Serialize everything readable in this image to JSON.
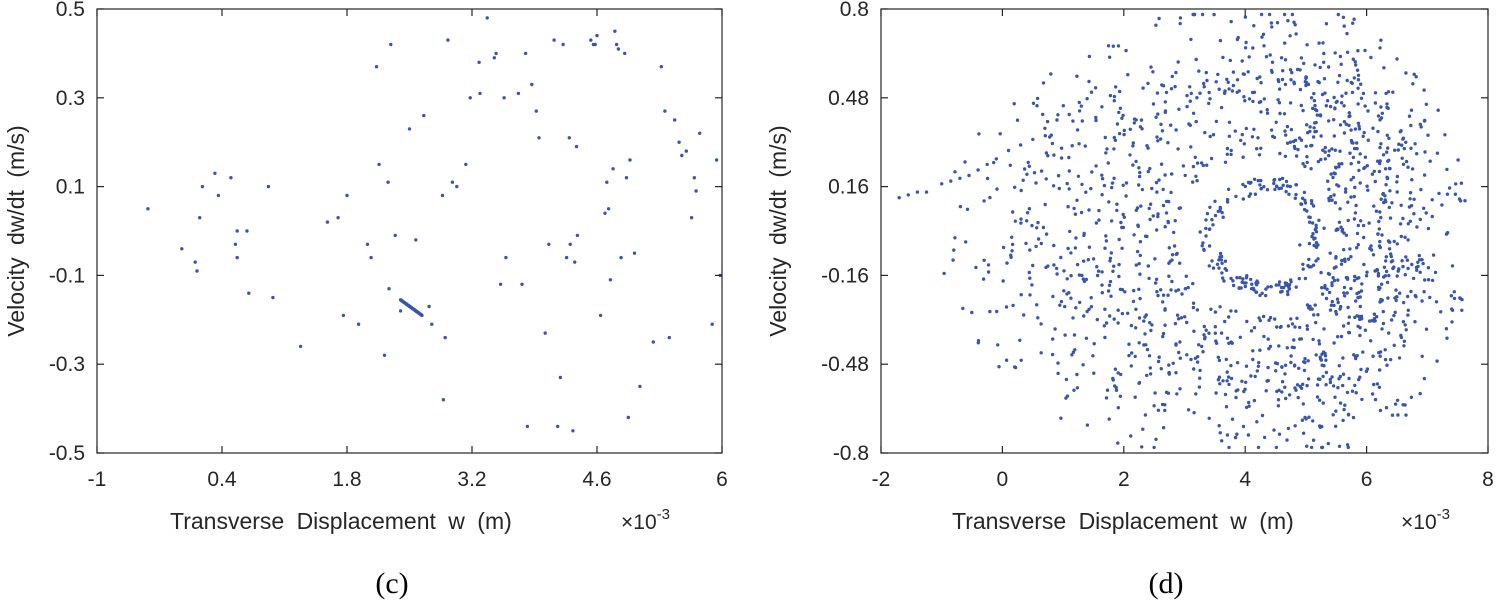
{
  "chart_data": [
    {
      "type": "scatter",
      "panel_caption": "(c)",
      "xlabel": "Transverse  Displacement  w  (m)",
      "x_multiplier": "×10",
      "x_multiplier_exp": "-3",
      "ylabel": "Velocity  dw/dt  (m/s)",
      "xlim": [
        -1,
        6
      ],
      "ylim": [
        -0.5,
        0.5
      ],
      "xticks": [
        -1,
        0.4,
        1.8,
        3.2,
        4.6,
        6
      ],
      "xtick_labels": [
        "-1",
        "0.4",
        "1.8",
        "3.2",
        "4.6",
        "6"
      ],
      "yticks": [
        -0.5,
        -0.3,
        -0.1,
        0.1,
        0.3,
        0.5
      ],
      "ytick_labels": [
        "-0.5",
        "-0.3",
        "-0.1",
        "0.1",
        "0.3",
        "0.5"
      ],
      "grid": false,
      "marker_color": "#3a56a8",
      "series": [
        {
          "points": [
            [
              -0.43,
              0.05
            ],
            [
              -0.05,
              -0.04
            ],
            [
              0.1,
              -0.07
            ],
            [
              0.12,
              -0.09
            ],
            [
              0.15,
              0.03
            ],
            [
              0.18,
              0.1
            ],
            [
              0.32,
              0.13
            ],
            [
              0.36,
              0.08
            ],
            [
              0.5,
              0.12
            ],
            [
              0.57,
              0.0
            ],
            [
              0.55,
              -0.03
            ],
            [
              0.57,
              -0.06
            ],
            [
              0.68,
              0.0
            ],
            [
              0.7,
              -0.14
            ],
            [
              0.92,
              0.1
            ],
            [
              0.97,
              -0.15
            ],
            [
              1.28,
              -0.26
            ],
            [
              1.58,
              0.02
            ],
            [
              1.7,
              0.03
            ],
            [
              1.76,
              -0.19
            ],
            [
              1.8,
              0.08
            ],
            [
              1.93,
              -0.21
            ],
            [
              2.03,
              -0.03
            ],
            [
              2.07,
              -0.06
            ],
            [
              2.13,
              0.37
            ],
            [
              2.16,
              0.15
            ],
            [
              2.22,
              -0.28
            ],
            [
              2.26,
              0.11
            ],
            [
              2.27,
              -0.13
            ],
            [
              2.29,
              0.42
            ],
            [
              2.34,
              -0.01
            ],
            [
              2.4,
              -0.18
            ],
            [
              2.5,
              0.23
            ],
            [
              2.57,
              -0.02
            ],
            [
              2.66,
              0.26
            ],
            [
              2.72,
              -0.17
            ],
            [
              2.75,
              -0.21
            ],
            [
              2.87,
              0.08
            ],
            [
              2.88,
              -0.38
            ],
            [
              2.9,
              -0.24
            ],
            [
              2.93,
              0.43
            ],
            [
              2.98,
              0.11
            ],
            [
              3.03,
              0.1
            ],
            [
              3.13,
              0.15
            ],
            [
              3.18,
              0.3
            ],
            [
              3.28,
              0.38
            ],
            [
              3.29,
              0.31
            ],
            [
              3.37,
              0.48
            ],
            [
              3.45,
              0.39
            ],
            [
              3.47,
              0.4
            ],
            [
              3.52,
              -0.12
            ],
            [
              3.56,
              0.3
            ],
            [
              3.58,
              -0.06
            ],
            [
              3.72,
              0.31
            ],
            [
              3.76,
              -0.12
            ],
            [
              3.8,
              0.4
            ],
            [
              3.82,
              -0.44
            ],
            [
              3.87,
              0.33
            ],
            [
              3.92,
              0.27
            ],
            [
              3.95,
              0.21
            ],
            [
              4.02,
              -0.23
            ],
            [
              4.06,
              -0.03
            ],
            [
              4.12,
              0.43
            ],
            [
              4.16,
              -0.44
            ],
            [
              4.19,
              -0.33
            ],
            [
              4.22,
              0.42
            ],
            [
              4.26,
              -0.06
            ],
            [
              4.29,
              0.21
            ],
            [
              4.3,
              -0.03
            ],
            [
              4.33,
              -0.45
            ],
            [
              4.35,
              -0.07
            ],
            [
              4.37,
              0.19
            ],
            [
              4.38,
              -0.01
            ],
            [
              4.53,
              0.43
            ],
            [
              4.56,
              0.42
            ],
            [
              4.58,
              0.42
            ],
            [
              4.6,
              0.44
            ],
            [
              4.64,
              -0.19
            ],
            [
              4.69,
              0.04
            ],
            [
              4.71,
              0.11
            ],
            [
              4.73,
              0.05
            ],
            [
              4.75,
              -0.11
            ],
            [
              4.78,
              0.14
            ],
            [
              4.8,
              0.45
            ],
            [
              4.82,
              0.42
            ],
            [
              4.84,
              0.41
            ],
            [
              4.87,
              -0.06
            ],
            [
              4.91,
              0.4
            ],
            [
              4.93,
              0.12
            ],
            [
              4.95,
              -0.42
            ],
            [
              4.97,
              0.16
            ],
            [
              5.02,
              -0.05
            ],
            [
              5.08,
              -0.35
            ],
            [
              5.23,
              -0.25
            ],
            [
              5.32,
              0.37
            ],
            [
              5.36,
              0.27
            ],
            [
              5.41,
              -0.24
            ],
            [
              5.47,
              0.25
            ],
            [
              5.52,
              0.2
            ],
            [
              5.55,
              0.17
            ],
            [
              5.6,
              0.18
            ],
            [
              5.66,
              0.03
            ],
            [
              5.69,
              0.12
            ],
            [
              5.71,
              0.09
            ],
            [
              5.75,
              0.22
            ],
            [
              5.89,
              -0.21
            ],
            [
              5.94,
              0.16
            ],
            [
              5.98,
              -0.1
            ]
          ],
          "cluster": {
            "x_from": 2.4,
            "y_from": -0.155,
            "x_to": 2.64,
            "y_to": -0.19
          }
        }
      ]
    },
    {
      "type": "scatter",
      "panel_caption": "(d)",
      "xlabel": "Transverse  Displacement  w  (m)",
      "x_multiplier": "×10",
      "x_multiplier_exp": "-3",
      "ylabel": "Velocity  dw/dt  (m/s)",
      "xlim": [
        -2,
        8
      ],
      "ylim": [
        -0.8,
        0.8
      ],
      "xticks": [
        -2,
        0,
        2,
        4,
        6,
        8
      ],
      "xtick_labels": [
        "-2",
        "0",
        "2",
        "4",
        "6",
        "8"
      ],
      "yticks": [
        -0.8,
        -0.48,
        -0.16,
        0.16,
        0.48,
        0.8
      ],
      "ytick_labels": [
        "-0.8",
        "-0.48",
        "-0.16",
        "0.16",
        "0.48",
        "0.8"
      ],
      "grid": false,
      "marker_color": "#3a56a8",
      "series": [
        {
          "attractor": {
            "center": [
              4.5,
              -0.02
            ],
            "arms": [
              {
                "theta_start": 0.0,
                "theta_end": 6.28,
                "r_x": 1.05,
                "r_y": 0.19,
                "spread": 0.05,
                "count": 170
              },
              {
                "theta_start": 0.0,
                "theta_end": 6.28,
                "r_x": 1.9,
                "r_y": 0.35,
                "spread": 0.06,
                "count": 260
              },
              {
                "theta_start": 0.0,
                "theta_end": 6.28,
                "r_x": 2.7,
                "r_y": 0.5,
                "spread": 0.07,
                "count": 360
              },
              {
                "theta_start": 0.0,
                "theta_end": 6.28,
                "r_x": 3.4,
                "r_y": 0.6,
                "spread": 0.08,
                "count": 430
              },
              {
                "theta_start": 0.0,
                "theta_end": 6.28,
                "r_x": 4.2,
                "r_y": 0.68,
                "spread": 0.09,
                "count": 450
              }
            ],
            "tail_points": [
              [
                -1.7,
                0.12
              ],
              [
                -1.55,
                0.13
              ],
              [
                -1.4,
                0.14
              ],
              [
                -1.25,
                0.14
              ],
              [
                -1.0,
                0.17
              ],
              [
                -0.85,
                0.18
              ],
              [
                -0.7,
                0.19
              ],
              [
                -0.55,
                0.2
              ],
              [
                -0.4,
                0.22
              ],
              [
                -0.25,
                0.24
              ],
              [
                -0.1,
                0.26
              ],
              [
                0.1,
                0.29
              ],
              [
                0.3,
                0.31
              ],
              [
                0.5,
                0.33
              ],
              [
                0.7,
                0.37
              ],
              [
                0.9,
                0.4
              ],
              [
                1.1,
                0.42
              ],
              [
                1.3,
                0.45
              ]
            ],
            "inner_points": [
              [
                4.9,
                -0.05
              ],
              [
                5.1,
                -0.02
              ],
              [
                5.3,
                0.01
              ],
              [
                5.2,
                -0.1
              ],
              [
                5.4,
                -0.08
              ],
              [
                5.05,
                0.05
              ],
              [
                5.25,
                -0.15
              ],
              [
                4.95,
                -0.12
              ]
            ]
          }
        }
      ]
    }
  ]
}
